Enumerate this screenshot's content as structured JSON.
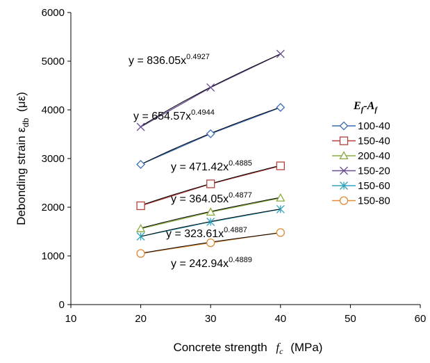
{
  "chart_data": {
    "type": "scatter",
    "xlabel_main": "Concrete strength",
    "xlabel_symbol": "f",
    "xlabel_symbol_sub": "c",
    "xlabel_unit": "(MPa)",
    "ylabel_main": "Debonding strain ε",
    "ylabel_sub": "db",
    "ylabel_unit": "(με)",
    "xlim": [
      10,
      60
    ],
    "ylim": [
      0,
      6000
    ],
    "xticks": [
      "10",
      "20",
      "30",
      "40",
      "50",
      "60"
    ],
    "yticks": [
      "0",
      "1000",
      "2000",
      "3000",
      "4000",
      "5000",
      "6000"
    ],
    "legend_title_E": "E",
    "legend_title_Esub": "f",
    "legend_title_dash": "-",
    "legend_title_A": "A",
    "legend_title_Asub": "f",
    "legend_position": "right",
    "series": [
      {
        "name": "100-40",
        "x": [
          20,
          30,
          40
        ],
        "y": [
          2880,
          3510,
          4050
        ],
        "color": "#3a6cb5",
        "marker": "diamond",
        "trend": {
          "a": 654.57,
          "b": 0.4944
        },
        "eq_base": "y = 654.57x",
        "eq_exp": "0.4944"
      },
      {
        "name": "150-40",
        "x": [
          20,
          30,
          40
        ],
        "y": [
          2030,
          2480,
          2850
        ],
        "color": "#b3403c",
        "marker": "square",
        "trend": {
          "a": 471.42,
          "b": 0.4885
        },
        "eq_base": "y = 471.42x",
        "eq_exp": "0.4885"
      },
      {
        "name": "200-40",
        "x": [
          20,
          30,
          40
        ],
        "y": [
          1560,
          1900,
          2190
        ],
        "color": "#8aaa3e",
        "marker": "triangle",
        "trend": {
          "a": 364.05,
          "b": 0.4877
        },
        "eq_base": "y = 364.05x",
        "eq_exp": "0.4877"
      },
      {
        "name": "150-20",
        "x": [
          20,
          30,
          40
        ],
        "y": [
          3650,
          4460,
          5150
        ],
        "color": "#6a4d93",
        "marker": "x",
        "trend": {
          "a": 836.05,
          "b": 0.4927
        },
        "eq_base": "y = 836.05x",
        "eq_exp": "0.4927"
      },
      {
        "name": "150-60",
        "x": [
          20,
          30,
          40
        ],
        "y": [
          1400,
          1700,
          1960
        ],
        "color": "#2fa3bd",
        "marker": "asterisk",
        "trend": {
          "a": 323.61,
          "b": 0.4887
        },
        "eq_base": "y = 323.61x",
        "eq_exp": "0.4887"
      },
      {
        "name": "150-80",
        "x": [
          20,
          30,
          40
        ],
        "y": [
          1050,
          1270,
          1480
        ],
        "color": "#e08a33",
        "marker": "circle",
        "trend": {
          "a": 242.94,
          "b": 0.4889
        },
        "eq_base": "y = 242.94x",
        "eq_exp": "0.4889"
      }
    ]
  }
}
